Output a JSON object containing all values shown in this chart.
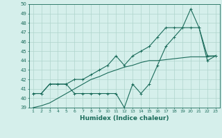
{
  "x": [
    1,
    2,
    3,
    4,
    5,
    6,
    7,
    8,
    9,
    10,
    11,
    12,
    13,
    14,
    15,
    16,
    17,
    18,
    19,
    20,
    21,
    22,
    23
  ],
  "line1": [
    40.5,
    40.5,
    41.5,
    41.5,
    41.5,
    40.5,
    40.5,
    40.5,
    40.5,
    40.5,
    40.5,
    39.0,
    41.5,
    40.5,
    41.5,
    43.5,
    45.5,
    46.5,
    47.5,
    49.5,
    47.5,
    44.0,
    44.5
  ],
  "line2": [
    40.5,
    40.5,
    41.5,
    41.5,
    41.5,
    42.0,
    42.0,
    42.5,
    43.0,
    43.5,
    44.5,
    43.5,
    44.5,
    45.0,
    45.5,
    46.5,
    47.5,
    47.5,
    47.5,
    47.5,
    47.5,
    44.5,
    44.5
  ],
  "line3": [
    39.0,
    39.2,
    39.5,
    40.0,
    40.5,
    41.0,
    41.5,
    42.0,
    42.3,
    42.7,
    43.0,
    43.3,
    43.5,
    43.8,
    44.0,
    44.0,
    44.1,
    44.2,
    44.3,
    44.4,
    44.4,
    44.4,
    44.5
  ],
  "xlabel": "Humidex (Indice chaleur)",
  "ylim": [
    39,
    50
  ],
  "yticks": [
    39,
    40,
    41,
    42,
    43,
    44,
    45,
    46,
    47,
    48,
    49,
    50
  ],
  "xticks": [
    1,
    2,
    3,
    4,
    5,
    6,
    7,
    8,
    9,
    10,
    11,
    12,
    13,
    14,
    15,
    16,
    17,
    18,
    19,
    20,
    21,
    22,
    23
  ],
  "line_color": "#1a6b5a",
  "bg_color": "#d5efeb",
  "grid_color": "#afd4cc"
}
